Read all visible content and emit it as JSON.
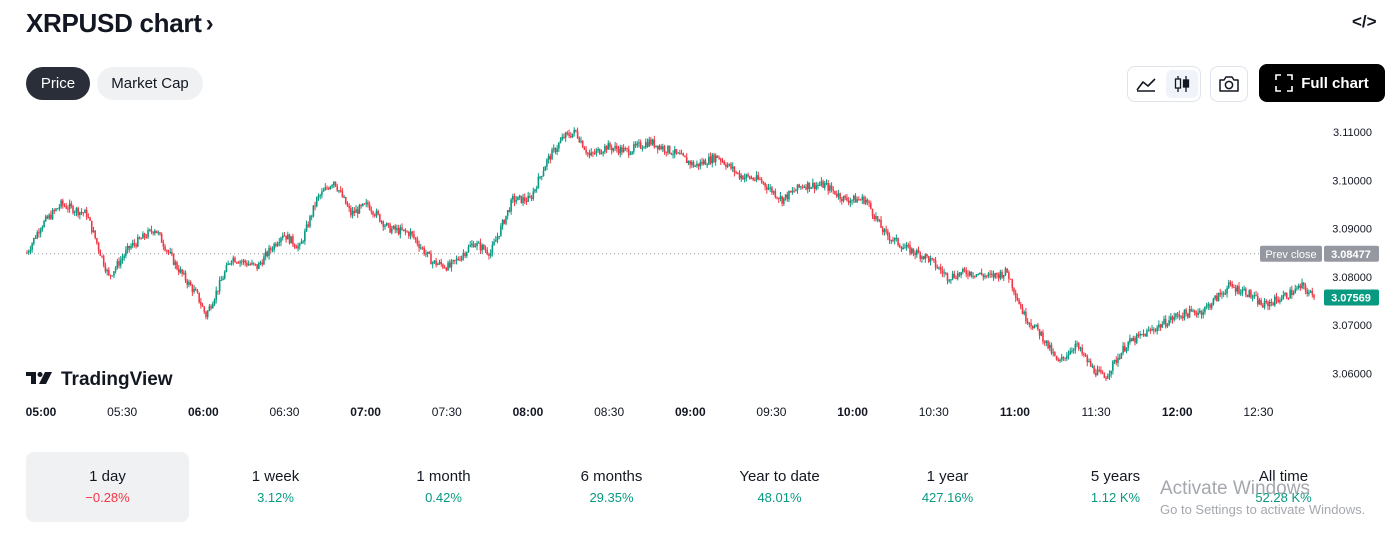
{
  "header": {
    "title": "XRPUSD chart",
    "chevron": "›",
    "embed_label": "</>"
  },
  "tabs": [
    {
      "label": "Price",
      "active": true
    },
    {
      "label": "Market Cap",
      "active": false
    }
  ],
  "toolbar": {
    "full_chart_label": "Full chart",
    "selected_style": "candles"
  },
  "colors": {
    "up": "#089981",
    "down": "#f23645",
    "dark": "#131722",
    "prev_close_bg": "#9598a1"
  },
  "chart_data": {
    "type": "candlestick",
    "symbol": "XRPUSD",
    "x_ticks": [
      {
        "label": "05:00",
        "bold": true
      },
      {
        "label": "05:30",
        "bold": false
      },
      {
        "label": "06:00",
        "bold": true
      },
      {
        "label": "06:30",
        "bold": false
      },
      {
        "label": "07:00",
        "bold": true
      },
      {
        "label": "07:30",
        "bold": false
      },
      {
        "label": "08:00",
        "bold": true
      },
      {
        "label": "08:30",
        "bold": false
      },
      {
        "label": "09:00",
        "bold": true
      },
      {
        "label": "09:30",
        "bold": false
      },
      {
        "label": "10:00",
        "bold": true
      },
      {
        "label": "10:30",
        "bold": false
      },
      {
        "label": "11:00",
        "bold": true
      },
      {
        "label": "11:30",
        "bold": false
      },
      {
        "label": "12:00",
        "bold": true
      },
      {
        "label": "12:30",
        "bold": false
      }
    ],
    "y_ticks": [
      "3.11000",
      "3.10000",
      "3.09000",
      "3.08000",
      "3.07000",
      "3.06000"
    ],
    "ylim": [
      3.0557,
      3.1127
    ],
    "time_range_minutes": [
      0,
      465
    ],
    "prev_close": {
      "label": "Prev close",
      "value": 3.08477,
      "value_label": "3.08477"
    },
    "last_price": {
      "value": 3.07569,
      "value_label": "3.07569"
    },
    "watermark": "TradingView",
    "close_path": [
      [
        0,
        3.085
      ],
      [
        8,
        3.0905
      ],
      [
        20,
        3.095
      ],
      [
        35,
        3.093
      ],
      [
        48,
        3.08
      ],
      [
        60,
        3.086
      ],
      [
        75,
        3.09
      ],
      [
        88,
        3.082
      ],
      [
        100,
        3.076
      ],
      [
        105,
        3.072
      ],
      [
        120,
        3.084
      ],
      [
        135,
        3.082
      ],
      [
        150,
        3.089
      ],
      [
        160,
        3.086
      ],
      [
        170,
        3.096
      ],
      [
        180,
        3.1
      ],
      [
        190,
        3.093
      ],
      [
        200,
        3.095
      ],
      [
        212,
        3.09
      ],
      [
        225,
        3.089
      ],
      [
        238,
        3.083
      ],
      [
        248,
        3.082
      ],
      [
        262,
        3.087
      ],
      [
        272,
        3.085
      ],
      [
        285,
        3.096
      ],
      [
        295,
        3.096
      ],
      [
        305,
        3.104
      ],
      [
        315,
        3.109
      ],
      [
        322,
        3.11
      ],
      [
        330,
        3.105
      ],
      [
        340,
        3.107
      ],
      [
        352,
        3.106
      ],
      [
        365,
        3.108
      ],
      [
        378,
        3.106
      ],
      [
        392,
        3.103
      ],
      [
        405,
        3.105
      ],
      [
        418,
        3.101
      ],
      [
        430,
        3.1
      ],
      [
        443,
        3.096
      ],
      [
        455,
        3.099
      ],
      [
        468,
        3.099
      ],
      [
        480,
        3.096
      ],
      [
        492,
        3.096
      ],
      [
        503,
        3.089
      ],
      [
        515,
        3.086
      ],
      [
        528,
        3.084
      ],
      [
        540,
        3.08
      ],
      [
        552,
        3.081
      ],
      [
        565,
        3.08
      ],
      [
        575,
        3.081
      ],
      [
        585,
        3.072
      ],
      [
        595,
        3.068
      ],
      [
        605,
        3.062
      ],
      [
        615,
        3.066
      ],
      [
        625,
        3.061
      ],
      [
        632,
        3.059
      ],
      [
        645,
        3.066
      ],
      [
        660,
        3.069
      ],
      [
        675,
        3.072
      ],
      [
        690,
        3.073
      ],
      [
        705,
        3.078
      ],
      [
        715,
        3.077
      ],
      [
        725,
        3.074
      ],
      [
        738,
        3.076
      ],
      [
        748,
        3.078
      ],
      [
        755,
        3.0757
      ]
    ],
    "changes": [
      {
        "period": "1 day",
        "value": "−0.28%",
        "direction": "down",
        "selected": true
      },
      {
        "period": "1 week",
        "value": "3.12%",
        "direction": "up",
        "selected": false
      },
      {
        "period": "1 month",
        "value": "0.42%",
        "direction": "up",
        "selected": false
      },
      {
        "period": "6 months",
        "value": "29.35%",
        "direction": "up",
        "selected": false
      },
      {
        "period": "Year to date",
        "value": "48.01%",
        "direction": "up",
        "selected": false
      },
      {
        "period": "1 year",
        "value": "427.16%",
        "direction": "up",
        "selected": false
      },
      {
        "period": "5 years",
        "value": "1.12 K%",
        "direction": "up",
        "selected": false
      },
      {
        "period": "All time",
        "value": "52.28 K%",
        "direction": "up",
        "selected": false
      }
    ]
  },
  "overlay": {
    "line1": "Activate Windows",
    "line2": "Go to Settings to activate Windows."
  }
}
